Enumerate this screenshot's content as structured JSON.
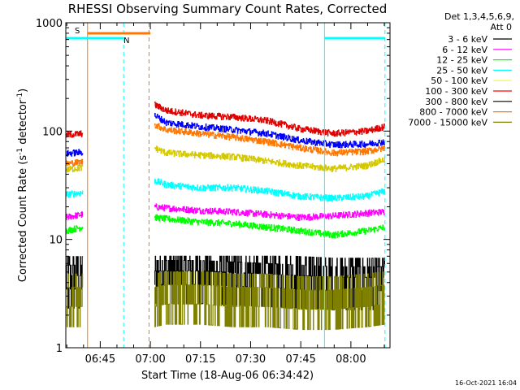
{
  "chart_data": {
    "type": "line",
    "title": "RHESSI Observing Summary Count Rates, Corrected",
    "xlabel": "Start Time (18-Aug-06 06:34:42)",
    "ylabel_main": "Corrected Count Rate (s",
    "ylabel_sup1": "-1",
    "ylabel_mid": " detector",
    "ylabel_sup2": "-1",
    "ylabel_end": ")",
    "yscale": "log",
    "ylim": [
      1,
      1000
    ],
    "xlim_minutes": [
      0,
      97
    ],
    "x_tick_labels": [
      "06:45",
      "07:00",
      "07:15",
      "07:30",
      "07:45",
      "08:00"
    ],
    "x_tick_minutes": [
      10.3,
      25.3,
      40.3,
      55.3,
      70.3,
      85.3
    ],
    "y_tick_labels": [
      "1",
      "10",
      "100",
      "1000"
    ],
    "y_tick_values": [
      1,
      10,
      100,
      1000
    ],
    "legend_header": [
      "Det 1,3,4,5,6,9,",
      "Att 0"
    ],
    "legend_position": "right",
    "footer_timestamp": "16-Oct-2021 16:04",
    "data_gaps_minutes": [
      [
        5.1,
        26.5
      ],
      [
        95.5,
        97
      ]
    ],
    "flag_bars": [
      {
        "label": "S",
        "color": "#ff7700",
        "start_min": 6.5,
        "end_min": 25.3
      },
      {
        "label": "N",
        "color": "#00ffff",
        "start_min": 0,
        "end_min": 17.3
      },
      {
        "label": "",
        "color": "#00ffff",
        "start_min": 77.4,
        "end_min": 95.5
      }
    ],
    "vertical_markers": [
      {
        "minute": 6.5,
        "color": "#ff7700",
        "style": "solid"
      },
      {
        "minute": 17.3,
        "color": "#00ffff",
        "style": "dashed"
      },
      {
        "minute": 24.9,
        "color": "#ff7700",
        "style": "dashed"
      },
      {
        "minute": 77.4,
        "color": "#00ffff",
        "style": "solid"
      },
      {
        "minute": 95.5,
        "color": "#00ffff",
        "style": "dashed"
      }
    ],
    "series": [
      {
        "name": "3 - 6 keV",
        "color": "#000000",
        "noisy": true,
        "x": [
          0,
          5,
          26.5,
          30,
          40,
          50,
          60,
          70,
          80,
          90,
          95.5
        ],
        "y": [
          4.5,
          4.5,
          6,
          6,
          6,
          5.5,
          5,
          4.5,
          4,
          4,
          4
        ]
      },
      {
        "name": "6 - 12 keV",
        "color": "#ff00ff",
        "x": [
          0,
          5,
          26.5,
          30,
          40,
          50,
          60,
          70,
          80,
          90,
          95.5
        ],
        "y": [
          16,
          17,
          20,
          19.5,
          18.5,
          18,
          17,
          16,
          16.5,
          17.5,
          18
        ]
      },
      {
        "name": "12 - 25 keV",
        "color": "#00ff00",
        "x": [
          0,
          5,
          26.5,
          30,
          40,
          50,
          60,
          70,
          80,
          90,
          95.5
        ],
        "y": [
          12,
          13,
          16,
          15.5,
          14.5,
          14,
          13,
          12,
          11,
          12,
          13
        ]
      },
      {
        "name": "25 - 50 keV",
        "color": "#00ffff",
        "x": [
          0,
          5,
          26.5,
          30,
          40,
          50,
          60,
          70,
          80,
          90,
          95.5
        ],
        "y": [
          26,
          27,
          35,
          32,
          30,
          30,
          28,
          25,
          24,
          25,
          28
        ]
      },
      {
        "name": "50 - 100 keV",
        "color": "#ffff00",
        "line_color": "#d4c800",
        "x": [
          0,
          5,
          26.5,
          30,
          40,
          50,
          60,
          70,
          80,
          90,
          95.5
        ],
        "y": [
          44,
          46,
          70,
          63,
          60,
          58,
          53,
          48,
          45,
          48,
          55
        ]
      },
      {
        "name": "100 - 300 keV",
        "color": "#ff0000",
        "line_color": "#e00000",
        "x": [
          0,
          5,
          26.5,
          30,
          40,
          50,
          60,
          70,
          80,
          90,
          95.5
        ],
        "y": [
          92,
          95,
          175,
          155,
          140,
          135,
          125,
          105,
          95,
          100,
          110
        ]
      },
      {
        "name": "300 - 800 keV",
        "color": "#000000",
        "line_color": "#0000ff",
        "x": [
          0,
          5,
          26.5,
          30,
          40,
          50,
          60,
          70,
          80,
          90,
          95.5
        ],
        "y": [
          62,
          64,
          140,
          120,
          110,
          103,
          95,
          82,
          75,
          76,
          80
        ]
      },
      {
        "name": "800 - 7000 keV",
        "color": "#ff7700",
        "x": [
          0,
          5,
          26.5,
          30,
          40,
          50,
          60,
          70,
          80,
          90,
          95.5
        ],
        "y": [
          50,
          52,
          115,
          103,
          95,
          88,
          80,
          70,
          63,
          65,
          70
        ]
      },
      {
        "name": "7000 - 15000 keV",
        "color": "#808000",
        "noisy": true,
        "x": [
          0,
          5,
          26.5,
          30,
          40,
          50,
          60,
          70,
          80,
          90,
          95.5
        ],
        "y": [
          3,
          3,
          3,
          3.5,
          3.5,
          3,
          3,
          2.5,
          2.5,
          3,
          3.5
        ]
      }
    ]
  }
}
